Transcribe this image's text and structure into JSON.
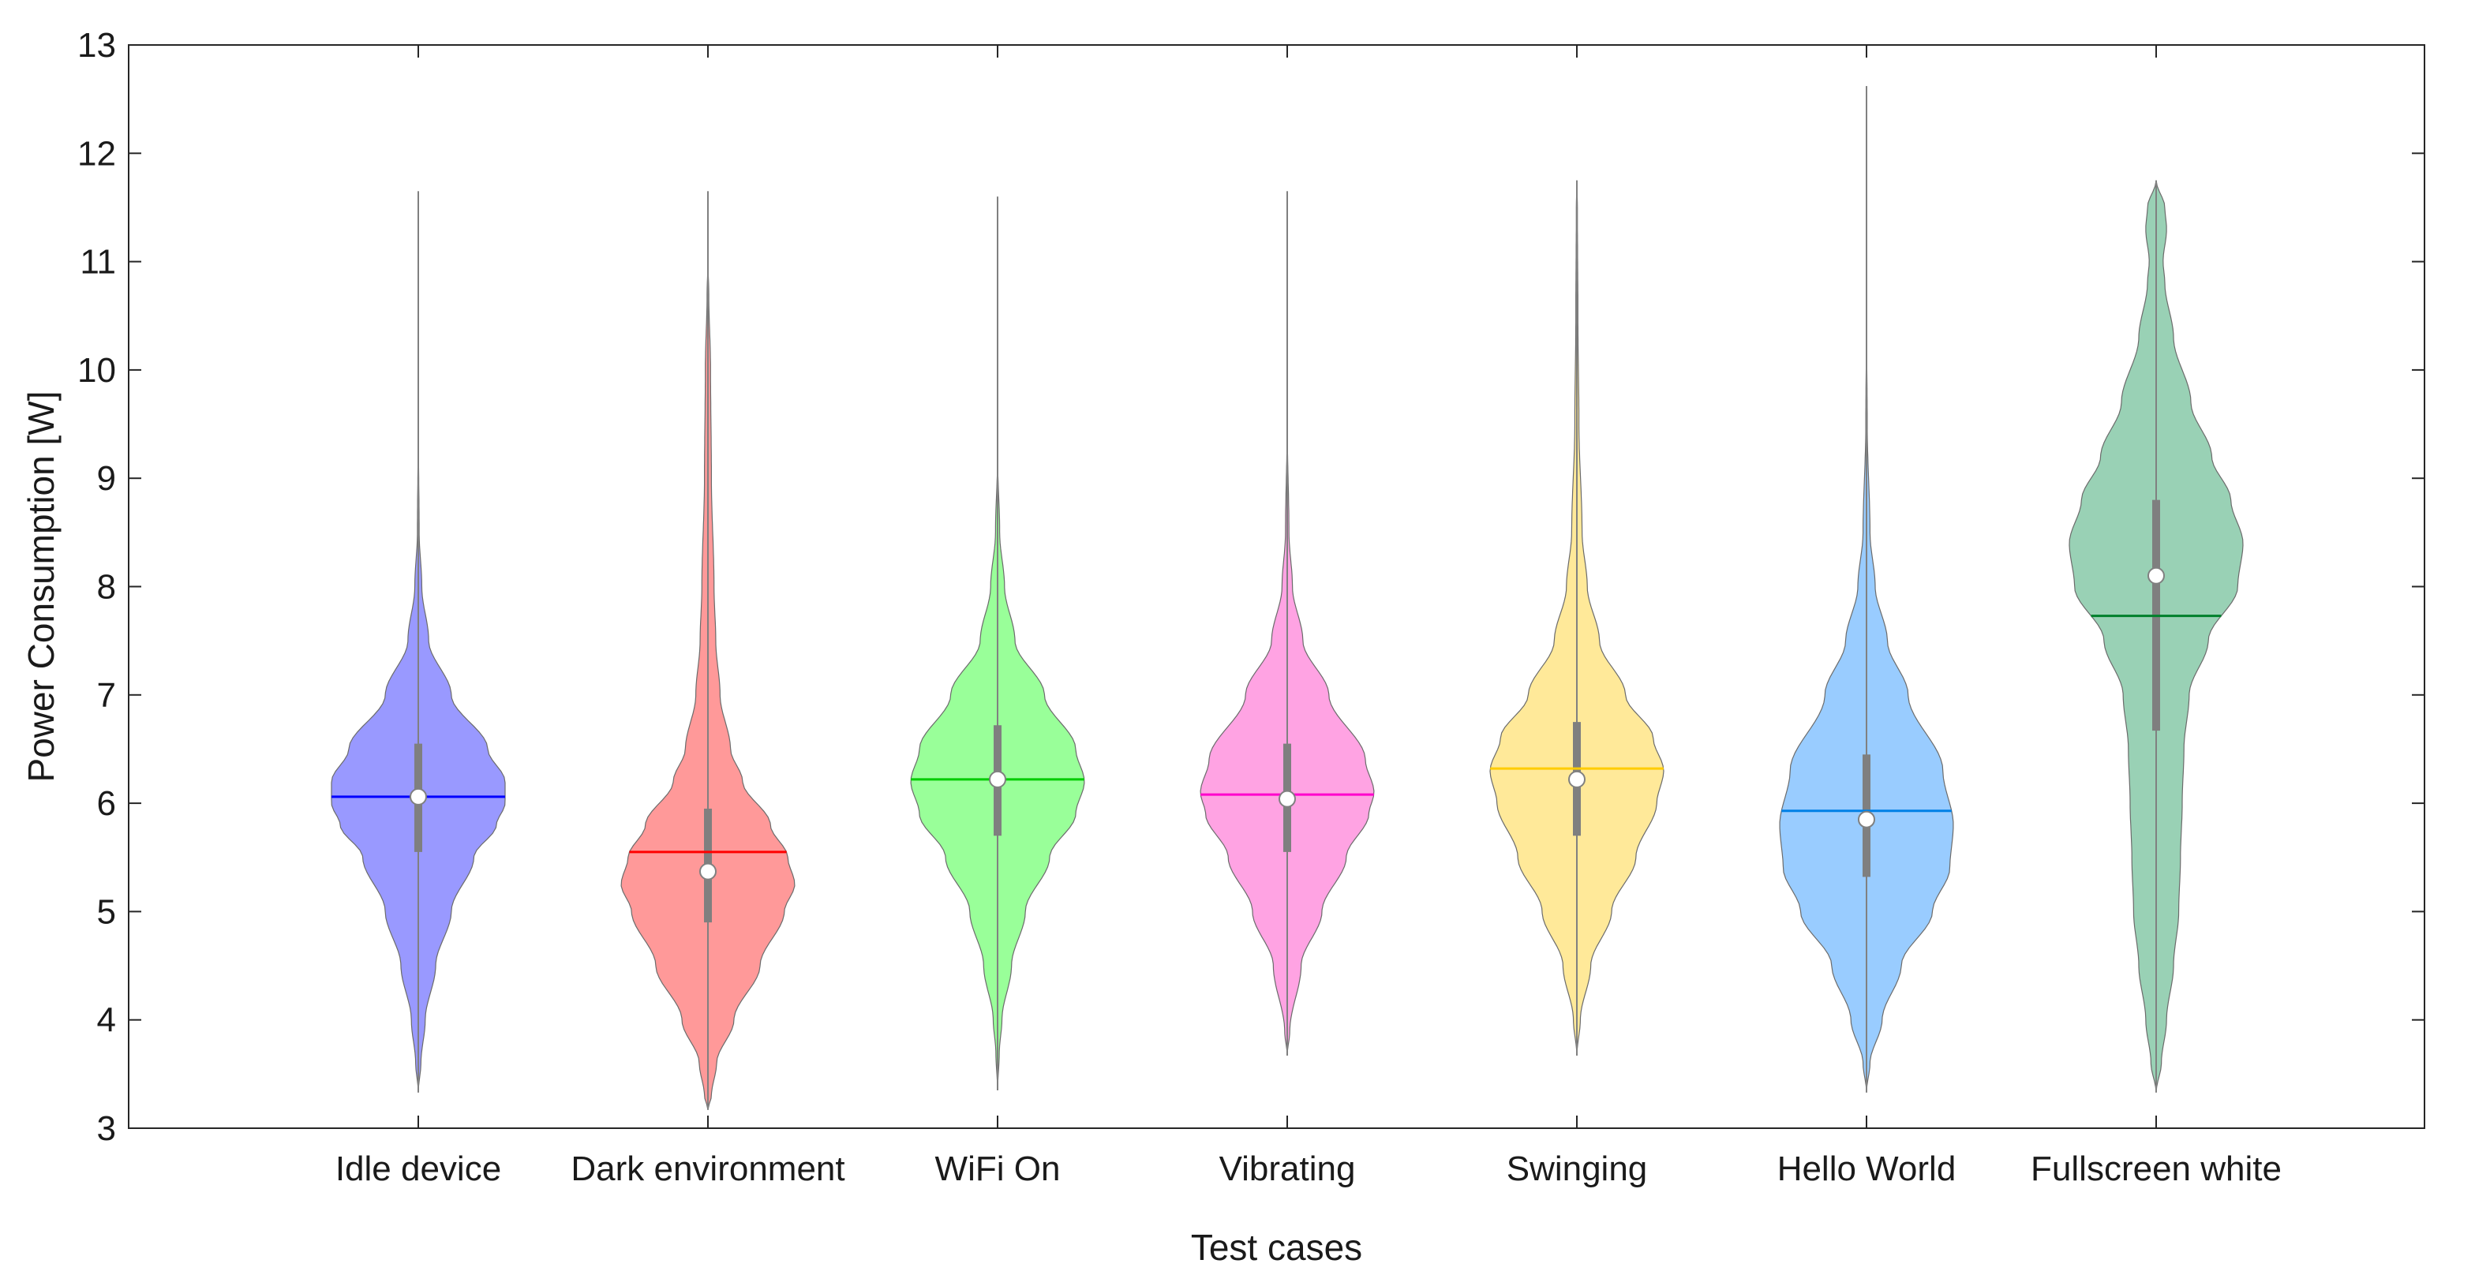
{
  "chart_data": {
    "type": "violin",
    "title": "",
    "xlabel": "Test cases",
    "ylabel": "Power Consumption [W]",
    "ylim": [
      3,
      13
    ],
    "yticks": [
      3,
      4,
      5,
      6,
      7,
      8,
      9,
      10,
      11,
      12,
      13
    ],
    "grid": false,
    "categories": [
      "Idle device",
      "Dark environment",
      "WiFi On",
      "Vibrating",
      "Swinging",
      "Hello World",
      "Fullscreen white"
    ],
    "series": [
      {
        "name": "Idle device",
        "fill": "#9999ff",
        "line_color": "#0000ff",
        "min": 3.33,
        "max": 11.65,
        "q1": 5.55,
        "q3": 6.55,
        "median": 6.06,
        "mean": 6.06,
        "density": [
          [
            3.33,
            0.0
          ],
          [
            3.6,
            0.015
          ],
          [
            4.0,
            0.04
          ],
          [
            4.5,
            0.1
          ],
          [
            5.0,
            0.19
          ],
          [
            5.5,
            0.32
          ],
          [
            5.8,
            0.45
          ],
          [
            6.0,
            0.5
          ],
          [
            6.2,
            0.5
          ],
          [
            6.5,
            0.4
          ],
          [
            7.0,
            0.19
          ],
          [
            7.5,
            0.06
          ],
          [
            8.0,
            0.02
          ],
          [
            8.5,
            0.005
          ],
          [
            9.5,
            0.0
          ]
        ]
      },
      {
        "name": "Dark environment",
        "fill": "#ff9999",
        "line_color": "#ff0000",
        "min": 3.17,
        "max": 11.65,
        "q1": 4.9,
        "q3": 5.95,
        "median": 5.37,
        "mean": 5.55,
        "density": [
          [
            3.17,
            0.0
          ],
          [
            3.3,
            0.02
          ],
          [
            3.6,
            0.05
          ],
          [
            4.0,
            0.15
          ],
          [
            4.5,
            0.3
          ],
          [
            5.0,
            0.44
          ],
          [
            5.25,
            0.5
          ],
          [
            5.5,
            0.46
          ],
          [
            5.8,
            0.36
          ],
          [
            6.2,
            0.2
          ],
          [
            6.5,
            0.13
          ],
          [
            7.0,
            0.07
          ],
          [
            7.5,
            0.045
          ],
          [
            8.0,
            0.035
          ],
          [
            9.0,
            0.02
          ],
          [
            10.0,
            0.015
          ],
          [
            10.7,
            0.005
          ],
          [
            11.0,
            0.0
          ]
        ]
      },
      {
        "name": "WiFi On",
        "fill": "#99ff99",
        "line_color": "#00cc00",
        "min": 3.35,
        "max": 11.6,
        "q1": 5.7,
        "q3": 6.72,
        "median": 6.22,
        "mean": 6.22,
        "density": [
          [
            3.35,
            0.0
          ],
          [
            3.7,
            0.01
          ],
          [
            4.0,
            0.025
          ],
          [
            4.5,
            0.08
          ],
          [
            5.0,
            0.16
          ],
          [
            5.5,
            0.3
          ],
          [
            5.9,
            0.45
          ],
          [
            6.2,
            0.5
          ],
          [
            6.5,
            0.45
          ],
          [
            7.0,
            0.27
          ],
          [
            7.5,
            0.1
          ],
          [
            8.0,
            0.04
          ],
          [
            8.5,
            0.012
          ],
          [
            9.2,
            0.0
          ]
        ]
      },
      {
        "name": "Vibrating",
        "fill": "#ffa3e3",
        "line_color": "#ff00cc",
        "min": 3.67,
        "max": 11.65,
        "q1": 5.55,
        "q3": 6.55,
        "median": 6.04,
        "mean": 6.08,
        "density": [
          [
            3.67,
            0.0
          ],
          [
            3.9,
            0.015
          ],
          [
            4.5,
            0.08
          ],
          [
            5.0,
            0.2
          ],
          [
            5.5,
            0.34
          ],
          [
            5.9,
            0.47
          ],
          [
            6.1,
            0.5
          ],
          [
            6.4,
            0.45
          ],
          [
            7.0,
            0.24
          ],
          [
            7.5,
            0.09
          ],
          [
            8.0,
            0.03
          ],
          [
            8.5,
            0.01
          ],
          [
            9.5,
            0.0
          ]
        ]
      },
      {
        "name": "Swinging",
        "fill": "#ffe999",
        "line_color": "#ffcc00",
        "min": 3.67,
        "max": 11.75,
        "q1": 5.7,
        "q3": 6.75,
        "median": 6.22,
        "mean": 6.32,
        "density": [
          [
            3.67,
            0.0
          ],
          [
            4.0,
            0.02
          ],
          [
            4.5,
            0.08
          ],
          [
            5.0,
            0.2
          ],
          [
            5.5,
            0.34
          ],
          [
            6.0,
            0.46
          ],
          [
            6.3,
            0.5
          ],
          [
            6.6,
            0.44
          ],
          [
            7.0,
            0.28
          ],
          [
            7.5,
            0.13
          ],
          [
            8.0,
            0.06
          ],
          [
            8.5,
            0.03
          ],
          [
            9.5,
            0.012
          ],
          [
            10.5,
            0.006
          ],
          [
            11.5,
            0.003
          ],
          [
            11.75,
            0.0
          ]
        ]
      },
      {
        "name": "Hello World",
        "fill": "#99ccff",
        "line_color": "#0080e6",
        "min": 3.33,
        "max": 12.62,
        "q1": 5.32,
        "q3": 6.45,
        "median": 5.85,
        "mean": 5.93,
        "density": [
          [
            3.33,
            0.0
          ],
          [
            3.6,
            0.02
          ],
          [
            4.0,
            0.09
          ],
          [
            4.5,
            0.2
          ],
          [
            5.0,
            0.38
          ],
          [
            5.4,
            0.48
          ],
          [
            5.8,
            0.5
          ],
          [
            6.3,
            0.44
          ],
          [
            7.0,
            0.24
          ],
          [
            7.5,
            0.12
          ],
          [
            8.0,
            0.05
          ],
          [
            8.5,
            0.02
          ],
          [
            9.5,
            0.004
          ],
          [
            10.5,
            0.0
          ]
        ]
      },
      {
        "name": "Fullscreen white",
        "fill": "#99d1b5",
        "line_color": "#00802b",
        "min": 3.33,
        "max": 11.75,
        "q1": 6.67,
        "q3": 8.8,
        "median": 8.1,
        "mean": 7.73,
        "density": [
          [
            3.33,
            0.0
          ],
          [
            3.6,
            0.03
          ],
          [
            4.0,
            0.06
          ],
          [
            4.5,
            0.1
          ],
          [
            5.0,
            0.13
          ],
          [
            5.5,
            0.14
          ],
          [
            6.0,
            0.15
          ],
          [
            6.5,
            0.16
          ],
          [
            7.0,
            0.19
          ],
          [
            7.5,
            0.3
          ],
          [
            8.0,
            0.47
          ],
          [
            8.4,
            0.5
          ],
          [
            8.8,
            0.43
          ],
          [
            9.2,
            0.32
          ],
          [
            9.7,
            0.2
          ],
          [
            10.3,
            0.1
          ],
          [
            10.8,
            0.05
          ],
          [
            11.0,
            0.04
          ],
          [
            11.3,
            0.06
          ],
          [
            11.5,
            0.05
          ],
          [
            11.75,
            0.0
          ]
        ]
      }
    ]
  }
}
